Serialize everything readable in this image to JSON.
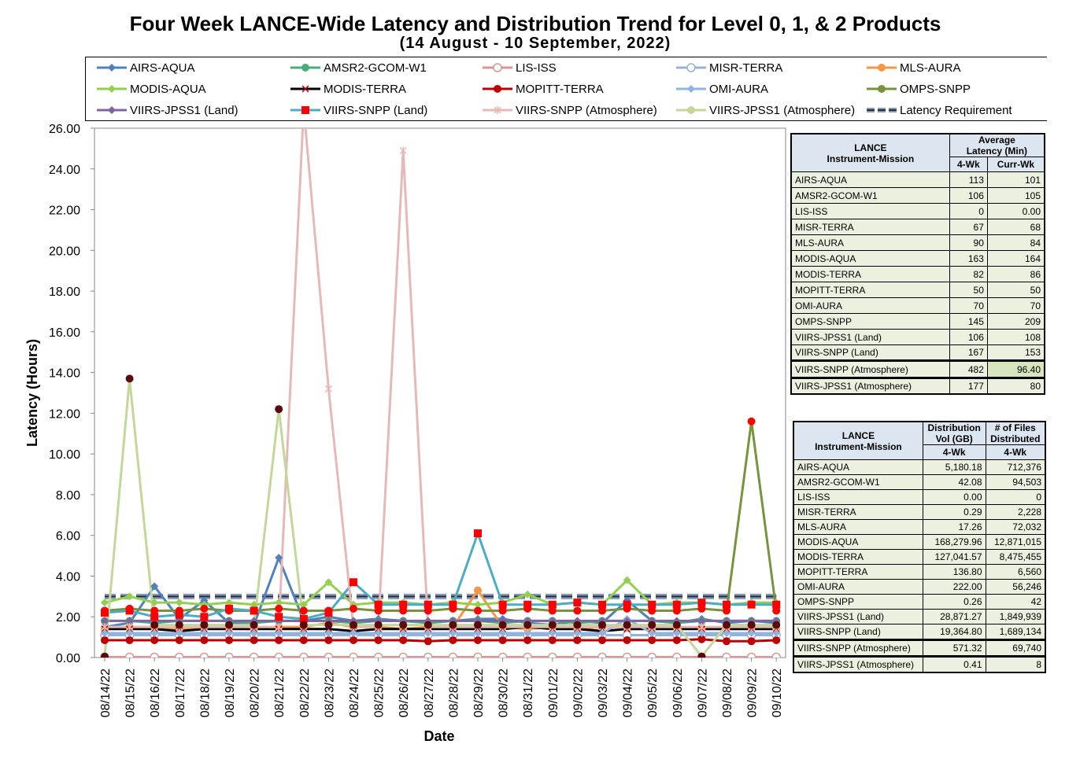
{
  "title": "Four Week LANCE-Wide Latency and Distribution Trend for Level 0, 1, & 2 Products",
  "subtitle": "(14  August   -  10  September,  2022)",
  "chart_data": {
    "type": "line",
    "title": "Four Week LANCE-Wide Latency and Distribution Trend for Level 0, 1, & 2 Products",
    "xlabel": "Date",
    "ylabel": "Latency (Hours)",
    "ylim": [
      0,
      26
    ],
    "yticks": [
      "0.00",
      "2.00",
      "4.00",
      "6.00",
      "8.00",
      "10.00",
      "12.00",
      "14.00",
      "16.00",
      "18.00",
      "20.00",
      "22.00",
      "24.00",
      "26.00"
    ],
    "categories": [
      "08/14/22",
      "08/15/22",
      "08/16/22",
      "08/17/22",
      "08/18/22",
      "08/19/22",
      "08/20/22",
      "08/21/22",
      "08/22/22",
      "08/23/22",
      "08/24/22",
      "08/25/22",
      "08/26/22",
      "08/27/22",
      "08/28/22",
      "08/29/22",
      "08/30/22",
      "08/31/22",
      "09/01/22",
      "09/02/22",
      "09/03/22",
      "09/04/22",
      "09/05/22",
      "09/06/22",
      "09/07/22",
      "09/08/22",
      "09/09/22",
      "09/10/22"
    ],
    "legend_position": "top",
    "grid": false,
    "series": [
      {
        "name": "AIRS-AQUA",
        "color": "#4f81bd",
        "marker": "diamond",
        "values": [
          1.5,
          1.7,
          3.5,
          1.9,
          2.8,
          1.7,
          1.6,
          4.9,
          1.8,
          2.0,
          1.8,
          1.9,
          1.8,
          1.7,
          1.8,
          1.9,
          1.9,
          1.7,
          1.6,
          1.8,
          1.7,
          2.8,
          1.8,
          1.7,
          1.9,
          1.7,
          1.8,
          1.7
        ]
      },
      {
        "name": "AMSR2-GCOM-W1",
        "color": "#4aac7c",
        "marker": "circle",
        "values": [
          1.8,
          1.8,
          1.7,
          1.8,
          1.8,
          1.8,
          1.7,
          1.8,
          1.8,
          1.8,
          1.7,
          1.8,
          1.8,
          1.7,
          1.8,
          1.8,
          1.7,
          1.8,
          1.8,
          1.7,
          1.8,
          1.8,
          1.8,
          1.7,
          1.8,
          1.8,
          1.8,
          1.8
        ]
      },
      {
        "name": "LIS-ISS",
        "color": "#d99694",
        "marker": "circle-open",
        "values": [
          0.02,
          0.02,
          0.02,
          0.02,
          0.02,
          0.02,
          0.02,
          0.02,
          0.02,
          0.02,
          0.02,
          0.02,
          0.02,
          0.02,
          0.02,
          0.02,
          0.02,
          0.02,
          0.02,
          0.02,
          0.02,
          0.02,
          0.02,
          0.02,
          0.02,
          0.02,
          0.02,
          0.02
        ]
      },
      {
        "name": "MISR-TERRA",
        "color": "#95b3d7",
        "marker": "circle-open",
        "values": [
          1.1,
          1.1,
          1.1,
          1.1,
          1.1,
          1.1,
          1.1,
          1.1,
          1.1,
          1.1,
          1.1,
          1.1,
          1.1,
          1.1,
          1.1,
          1.1,
          1.1,
          1.1,
          1.1,
          1.1,
          1.1,
          1.1,
          1.1,
          1.1,
          1.1,
          1.1,
          1.1,
          1.1
        ]
      },
      {
        "name": "MLS-AURA",
        "color": "#f79646",
        "marker": "circle",
        "values": [
          1.4,
          1.5,
          1.5,
          1.4,
          1.5,
          1.5,
          1.4,
          1.5,
          1.5,
          1.7,
          1.5,
          1.5,
          1.4,
          1.5,
          1.5,
          3.3,
          1.5,
          1.4,
          1.5,
          1.4,
          1.5,
          1.5,
          1.4,
          1.5,
          1.4,
          1.5,
          1.5,
          1.4
        ]
      },
      {
        "name": "MODIS-AQUA",
        "color": "#92d050",
        "marker": "diamond",
        "values": [
          2.7,
          3.0,
          2.7,
          2.7,
          2.6,
          2.7,
          2.6,
          2.7,
          2.6,
          3.7,
          2.6,
          2.7,
          2.7,
          2.6,
          2.7,
          2.6,
          2.7,
          3.1,
          2.6,
          2.7,
          2.6,
          3.8,
          2.6,
          2.7,
          2.7,
          2.6,
          2.7,
          2.7
        ]
      },
      {
        "name": "MODIS-TERRA",
        "color": "#000000",
        "marker": "x",
        "values": [
          1.4,
          1.4,
          1.4,
          1.3,
          1.4,
          1.4,
          1.4,
          1.4,
          1.4,
          1.4,
          1.3,
          1.4,
          1.4,
          1.4,
          1.4,
          1.4,
          1.4,
          1.5,
          1.4,
          1.4,
          1.3,
          1.4,
          1.4,
          1.4,
          1.4,
          1.4,
          1.4,
          1.4
        ]
      },
      {
        "name": "MOPITT-TERRA",
        "color": "#c00000",
        "marker": "circle",
        "values": [
          0.85,
          0.85,
          0.85,
          0.85,
          0.85,
          0.85,
          0.85,
          0.85,
          0.85,
          0.85,
          0.85,
          0.85,
          0.85,
          0.8,
          0.85,
          0.85,
          0.85,
          0.85,
          0.85,
          0.85,
          0.85,
          0.85,
          0.85,
          0.85,
          0.9,
          0.8,
          0.8,
          0.85
        ]
      },
      {
        "name": "OMI-AURA",
        "color": "#8eb4e3",
        "marker": "diamond",
        "values": [
          1.2,
          1.2,
          1.2,
          1.2,
          1.2,
          1.2,
          1.2,
          1.2,
          1.2,
          1.2,
          1.2,
          1.2,
          1.2,
          1.2,
          1.2,
          1.2,
          1.2,
          1.2,
          1.2,
          1.2,
          1.2,
          1.9,
          1.2,
          1.2,
          1.2,
          1.2,
          1.2,
          1.2
        ]
      },
      {
        "name": "OMPS-SNPP",
        "color": "#77933c",
        "marker": "circle",
        "values": [
          2.3,
          2.4,
          2.3,
          2.3,
          2.4,
          2.3,
          2.3,
          2.4,
          2.3,
          2.3,
          2.4,
          2.3,
          2.3,
          2.3,
          2.4,
          2.3,
          2.3,
          2.4,
          2.3,
          2.3,
          2.3,
          2.4,
          2.3,
          2.3,
          2.4,
          2.3,
          11.6,
          2.3
        ]
      },
      {
        "name": "VIIRS-JPSS1 (Land)",
        "color": "#8064a2",
        "marker": "diamond",
        "values": [
          1.8,
          1.8,
          1.8,
          1.8,
          1.8,
          1.8,
          1.8,
          1.8,
          1.8,
          1.8,
          1.8,
          1.8,
          1.8,
          1.8,
          1.8,
          1.8,
          1.8,
          1.8,
          1.8,
          1.8,
          1.8,
          1.8,
          1.8,
          1.8,
          1.8,
          1.8,
          1.8,
          1.8
        ]
      },
      {
        "name": "VIIRS-SNPP (Land)",
        "color": "#4bacc6",
        "marker": "square",
        "values": [
          2.2,
          2.3,
          2.0,
          2.1,
          2.0,
          2.4,
          2.3,
          2.0,
          1.9,
          2.2,
          3.7,
          2.6,
          2.6,
          2.6,
          2.6,
          6.1,
          2.6,
          2.6,
          2.6,
          2.7,
          2.6,
          2.6,
          2.6,
          2.6,
          2.7,
          2.6,
          2.6,
          2.6
        ]
      },
      {
        "name": "VIIRS-SNPP (Atmosphere)",
        "color": "#e6b9b8",
        "marker": "star",
        "values": [
          1.5,
          1.5,
          1.5,
          1.5,
          1.5,
          1.5,
          1.5,
          1.5,
          27.0,
          13.2,
          1.5,
          1.5,
          24.9,
          1.5,
          1.5,
          1.5,
          1.5,
          1.5,
          1.5,
          1.5,
          1.5,
          1.5,
          1.5,
          1.5,
          1.5,
          1.5,
          1.5,
          1.5
        ]
      },
      {
        "name": "VIIRS-JPSS1 (Atmosphere)",
        "color": "#c4d79b",
        "marker": "circle",
        "values": [
          0.05,
          13.7,
          1.6,
          1.6,
          1.6,
          1.6,
          1.6,
          12.2,
          1.6,
          1.6,
          1.6,
          1.6,
          1.6,
          1.6,
          1.6,
          1.6,
          1.6,
          1.6,
          1.6,
          1.6,
          1.6,
          1.6,
          1.6,
          1.6,
          0.05,
          1.6,
          1.6,
          1.6
        ]
      },
      {
        "name": "Latency Requirement",
        "color": "#8c9ab0",
        "marker": "none",
        "dashed": true,
        "values": [
          3,
          3,
          3,
          3,
          3,
          3,
          3,
          3,
          3,
          3,
          3,
          3,
          3,
          3,
          3,
          3,
          3,
          3,
          3,
          3,
          3,
          3,
          3,
          3,
          3,
          3,
          3,
          3
        ]
      }
    ]
  },
  "table1": {
    "col1_header": [
      "LANCE",
      "Instrument-Mission"
    ],
    "col2_header": [
      "Average",
      "Latency (Min)"
    ],
    "sub_headers": [
      "4-Wk",
      "Curr-Wk"
    ],
    "rows": [
      [
        "AIRS-AQUA",
        "113",
        "101"
      ],
      [
        "AMSR2-GCOM-W1",
        "106",
        "105"
      ],
      [
        "LIS-ISS",
        "0",
        "0.00"
      ],
      [
        "MISR-TERRA",
        "67",
        "68"
      ],
      [
        "MLS-AURA",
        "90",
        "84"
      ],
      [
        "MODIS-AQUA",
        "163",
        "164"
      ],
      [
        "MODIS-TERRA",
        "82",
        "86"
      ],
      [
        "MOPITT-TERRA",
        "50",
        "50"
      ],
      [
        "OMI-AURA",
        "70",
        "70"
      ],
      [
        "OMPS-SNPP",
        "145",
        "209"
      ],
      [
        "VIIRS-JPSS1 (Land)",
        "106",
        "108"
      ],
      [
        "VIIRS-SNPP (Land)",
        "167",
        "153"
      ],
      [
        "VIIRS-SNPP (Atmosphere)",
        "482",
        "96.40"
      ],
      [
        "VIIRS-JPSS1 (Atmosphere)",
        "177",
        "80"
      ]
    ]
  },
  "table2": {
    "col1_header": [
      "LANCE",
      "Instrument-Mission"
    ],
    "col2_header": [
      "Distribution",
      "Vol (GB)"
    ],
    "col3_header": [
      "# of Files",
      "Distributed"
    ],
    "sub_headers": [
      "4-Wk",
      "4-Wk"
    ],
    "rows": [
      [
        "AIRS-AQUA",
        "5,180.18",
        "712,376"
      ],
      [
        "AMSR2-GCOM-W1",
        "42.08",
        "94,503"
      ],
      [
        "LIS-ISS",
        "0.00",
        "0"
      ],
      [
        "MISR-TERRA",
        "0.29",
        "2,228"
      ],
      [
        "MLS-AURA",
        "17.26",
        "72,032"
      ],
      [
        "MODIS-AQUA",
        "168,279.96",
        "12,871,015"
      ],
      [
        "MODIS-TERRA",
        "127,041.57",
        "8,475,455"
      ],
      [
        "MOPITT-TERRA",
        "136.80",
        "6,560"
      ],
      [
        "OMI-AURA",
        "222.00",
        "56,246"
      ],
      [
        "OMPS-SNPP",
        "0.26",
        "42"
      ],
      [
        "VIIRS-JPSS1 (Land)",
        "28,871.27",
        "1,849,939"
      ],
      [
        "VIIRS-SNPP (Land)",
        "19,364.80",
        "1,689,134"
      ],
      [
        "VIIRS-SNPP (Atmosphere)",
        "571.32",
        "69,740"
      ],
      [
        "VIIRS-JPSS1 (Atmosphere)",
        "0.41",
        "8"
      ]
    ]
  }
}
